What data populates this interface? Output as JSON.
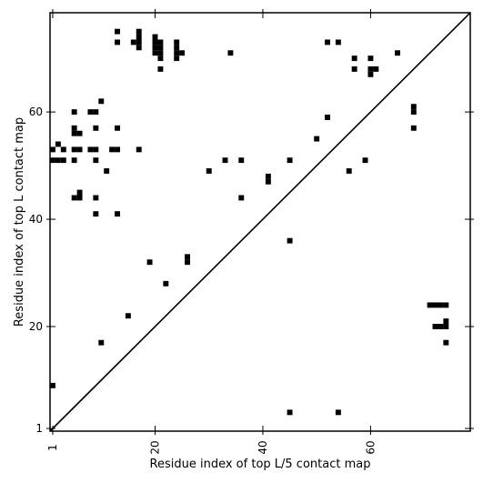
{
  "chart_data": {
    "type": "heatmap",
    "title": "",
    "xlabel": "Residue index of top L/5 contact map",
    "ylabel": "Residue index of top L contact map",
    "xlim": [
      0.5,
      78.5
    ],
    "ylim": [
      0.5,
      78.5
    ],
    "xticks": [
      1,
      20,
      40,
      60
    ],
    "xtick_labels": [
      "1",
      "20",
      "40",
      "60"
    ],
    "yticks": [
      1,
      20,
      40,
      60
    ],
    "ytick_labels": [
      "1",
      "20",
      "40",
      "60"
    ],
    "diagonal": true,
    "grid": false,
    "cell_color": "#000000",
    "upper_triangle_contacts": [
      [
        1,
        53
      ],
      [
        1,
        51
      ],
      [
        2,
        54
      ],
      [
        2,
        51
      ],
      [
        3,
        53
      ],
      [
        3,
        51
      ],
      [
        5,
        60
      ],
      [
        5,
        57
      ],
      [
        5,
        56
      ],
      [
        5,
        53
      ],
      [
        5,
        51
      ],
      [
        5,
        44
      ],
      [
        6,
        56
      ],
      [
        6,
        53
      ],
      [
        6,
        45
      ],
      [
        6,
        44
      ],
      [
        8,
        60
      ],
      [
        8,
        53
      ],
      [
        9,
        60
      ],
      [
        9,
        57
      ],
      [
        9,
        53
      ],
      [
        9,
        51
      ],
      [
        9,
        44
      ],
      [
        9,
        41
      ],
      [
        10,
        62
      ],
      [
        11,
        49
      ],
      [
        12,
        53
      ],
      [
        13,
        75
      ],
      [
        13,
        73
      ],
      [
        13,
        57
      ],
      [
        13,
        53
      ],
      [
        13,
        41
      ],
      [
        16,
        73
      ],
      [
        17,
        75
      ],
      [
        17,
        74
      ],
      [
        17,
        73
      ],
      [
        17,
        72
      ],
      [
        17,
        53
      ],
      [
        20,
        74
      ],
      [
        20,
        73
      ],
      [
        20,
        72
      ],
      [
        20,
        71
      ],
      [
        21,
        73
      ],
      [
        21,
        72
      ],
      [
        21,
        71
      ],
      [
        21,
        70
      ],
      [
        21,
        68
      ],
      [
        24,
        73
      ],
      [
        24,
        72
      ],
      [
        24,
        71
      ],
      [
        24,
        70
      ],
      [
        25,
        71
      ],
      [
        30,
        49
      ],
      [
        33,
        51
      ],
      [
        34,
        71
      ],
      [
        36,
        51
      ],
      [
        36,
        44
      ],
      [
        41,
        48
      ],
      [
        41,
        47
      ],
      [
        45,
        51
      ],
      [
        50,
        55
      ],
      [
        52,
        73
      ],
      [
        52,
        59
      ],
      [
        54,
        73
      ],
      [
        56,
        49
      ],
      [
        57,
        70
      ],
      [
        57,
        68
      ],
      [
        59,
        51
      ],
      [
        60,
        70
      ],
      [
        60,
        68
      ],
      [
        60,
        67
      ],
      [
        61,
        68
      ],
      [
        65,
        71
      ],
      [
        68,
        61
      ],
      [
        68,
        60
      ],
      [
        68,
        57
      ]
    ],
    "lower_triangle_contacts": [
      [
        1,
        9
      ],
      [
        10,
        17
      ],
      [
        15,
        22
      ],
      [
        19,
        32
      ],
      [
        22,
        28
      ],
      [
        26,
        33
      ],
      [
        26,
        32
      ],
      [
        45,
        36
      ],
      [
        45,
        4
      ],
      [
        54,
        4
      ],
      [
        71,
        24
      ],
      [
        72,
        24
      ],
      [
        73,
        24
      ],
      [
        74,
        24
      ],
      [
        72,
        20
      ],
      [
        73,
        20
      ],
      [
        74,
        20
      ],
      [
        74,
        21
      ],
      [
        74,
        17
      ]
    ]
  }
}
